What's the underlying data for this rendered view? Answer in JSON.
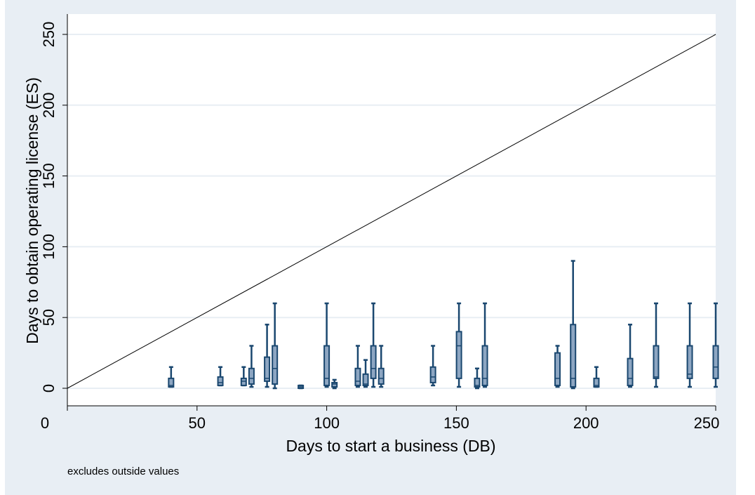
{
  "chart_data": {
    "type": "boxplot",
    "xlabel": "Days to start a business (DB)",
    "ylabel": "Days to obtain operating license (ES)",
    "note": "excludes outside values",
    "xlim": [
      0,
      250
    ],
    "ylim": [
      0,
      250
    ],
    "x_ticks": [
      0,
      50,
      100,
      150,
      200,
      250
    ],
    "y_ticks": [
      0,
      50,
      100,
      150,
      200,
      250
    ],
    "grid": "horizontal",
    "reference_line": {
      "from": [
        0,
        0
      ],
      "to": [
        250,
        250
      ]
    },
    "colors": {
      "box_fill": "#8da6c2",
      "box_edge": "#1a476f",
      "background": "#e8eef4",
      "plot_bg": "#ffffff",
      "grid": "#e8eef4"
    },
    "boxes": [
      {
        "x": 40,
        "min": 1,
        "q1": 1,
        "median": 2,
        "q3": 7,
        "max": 15
      },
      {
        "x": 59,
        "min": 2,
        "q1": 2,
        "median": 4,
        "q3": 8,
        "max": 15
      },
      {
        "x": 68,
        "min": 2,
        "q1": 2,
        "median": 5,
        "q3": 7,
        "max": 15
      },
      {
        "x": 71,
        "min": 1,
        "q1": 3,
        "median": 7,
        "q3": 14,
        "max": 30
      },
      {
        "x": 77,
        "min": 1,
        "q1": 5,
        "median": 7,
        "q3": 22,
        "max": 45
      },
      {
        "x": 80,
        "min": 0,
        "q1": 3,
        "median": 14,
        "q3": 30,
        "max": 60
      },
      {
        "x": 90,
        "min": 0,
        "q1": 0,
        "median": 1,
        "q3": 2,
        "max": 2
      },
      {
        "x": 100,
        "min": 1,
        "q1": 2,
        "median": 7,
        "q3": 30,
        "max": 60
      },
      {
        "x": 103,
        "min": 0,
        "q1": 1,
        "median": 3,
        "q3": 4,
        "max": 6
      },
      {
        "x": 112,
        "min": 1,
        "q1": 2,
        "median": 5,
        "q3": 14,
        "max": 30
      },
      {
        "x": 115,
        "min": 1,
        "q1": 2,
        "median": 3,
        "q3": 10,
        "max": 20
      },
      {
        "x": 118,
        "min": 1,
        "q1": 7,
        "median": 14,
        "q3": 30,
        "max": 60
      },
      {
        "x": 121,
        "min": 1,
        "q1": 3,
        "median": 7,
        "q3": 14,
        "max": 30
      },
      {
        "x": 141,
        "min": 2,
        "q1": 4,
        "median": 8,
        "q3": 15,
        "max": 30
      },
      {
        "x": 151,
        "min": 1,
        "q1": 7,
        "median": 30,
        "q3": 40,
        "max": 60
      },
      {
        "x": 158,
        "min": 0,
        "q1": 1,
        "median": 2,
        "q3": 7,
        "max": 14
      },
      {
        "x": 161,
        "min": 1,
        "q1": 2,
        "median": 7,
        "q3": 30,
        "max": 60
      },
      {
        "x": 189,
        "min": 1,
        "q1": 2,
        "median": 7,
        "q3": 25,
        "max": 30
      },
      {
        "x": 195,
        "min": 0,
        "q1": 1,
        "median": 7,
        "q3": 45,
        "max": 90
      },
      {
        "x": 204,
        "min": 1,
        "q1": 1,
        "median": 2,
        "q3": 7,
        "max": 15
      },
      {
        "x": 217,
        "min": 1,
        "q1": 2,
        "median": 7,
        "q3": 21,
        "max": 45
      },
      {
        "x": 227,
        "min": 1,
        "q1": 7,
        "median": 8,
        "q3": 30,
        "max": 60
      },
      {
        "x": 240,
        "min": 1,
        "q1": 7,
        "median": 10,
        "q3": 30,
        "max": 60
      },
      {
        "x": 250,
        "min": 1,
        "q1": 7,
        "median": 15,
        "q3": 30,
        "max": 60
      }
    ]
  }
}
